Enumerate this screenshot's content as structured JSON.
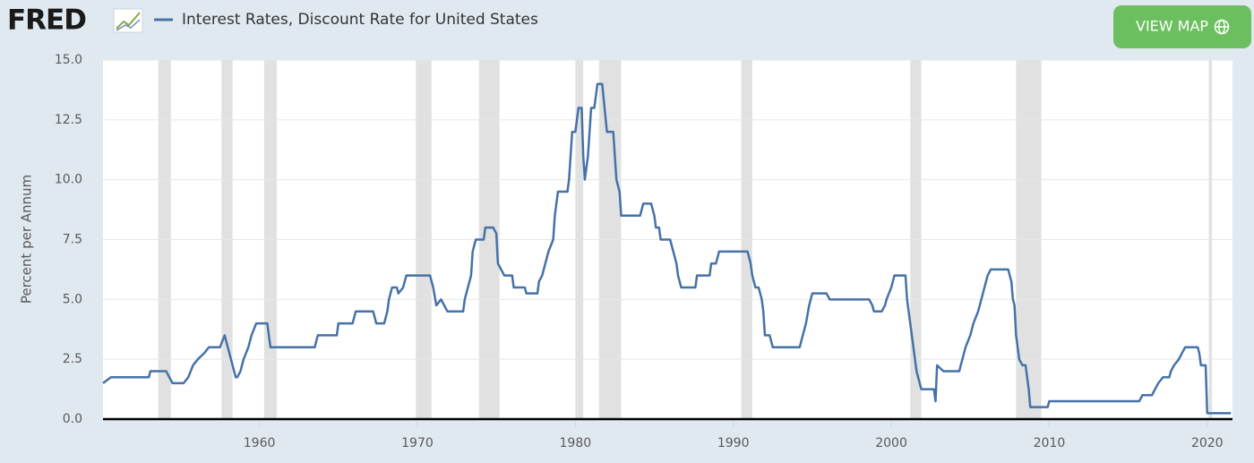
{
  "logo": "FRED",
  "button": "VIEW MAP",
  "chart_data": {
    "type": "line",
    "y_label": "Percent per Annum",
    "xlim": [
      1950.1,
      2021.6
    ],
    "ylim": [
      0,
      15
    ],
    "xticks": [
      1960,
      1970,
      1980,
      1990,
      2000,
      2010,
      2020
    ],
    "yticks": [
      {
        "value": 0,
        "label": "0.0"
      },
      {
        "value": 2.5,
        "label": "2.5"
      },
      {
        "value": 5,
        "label": "5.0"
      },
      {
        "value": 7.5,
        "label": "7.5"
      },
      {
        "value": 10,
        "label": "10.0"
      },
      {
        "value": 12.5,
        "label": "12.5"
      },
      {
        "value": 15,
        "label": "15.0"
      }
    ],
    "grid": true,
    "recessions": [
      [
        1953.6,
        1954.4
      ],
      [
        1957.6,
        1958.3
      ],
      [
        1960.3,
        1961.1
      ],
      [
        1969.9,
        1970.9
      ],
      [
        1973.9,
        1975.2
      ],
      [
        1980.0,
        1980.5
      ],
      [
        1981.5,
        1982.9
      ],
      [
        1990.5,
        1991.2
      ],
      [
        2001.2,
        2001.9
      ],
      [
        2007.9,
        2009.5
      ],
      [
        2020.1,
        2020.3
      ]
    ],
    "recession_color": "#e1e1e1",
    "x": [
      1950.1,
      1950.6,
      1953.0,
      1953.1,
      1954.1,
      1954.5,
      1955.2,
      1955.5,
      1955.8,
      1956.1,
      1956.5,
      1956.8,
      1957.5,
      1957.8,
      1958.0,
      1958.1,
      1958.5,
      1958.6,
      1958.8,
      1959.0,
      1959.3,
      1959.5,
      1959.8,
      1960.5,
      1960.6,
      1960.7,
      1963.5,
      1963.7,
      1964.9,
      1965.0,
      1965.9,
      1966.1,
      1967.2,
      1967.4,
      1967.9,
      1968.1,
      1968.2,
      1968.4,
      1968.7,
      1968.8,
      1969.1,
      1969.3,
      1970.8,
      1971.0,
      1971.2,
      1971.5,
      1971.9,
      1972.9,
      1973.0,
      1973.2,
      1973.4,
      1973.5,
      1973.7,
      1974.2,
      1974.3,
      1974.8,
      1975.0,
      1975.1,
      1975.3,
      1975.5,
      1976.0,
      1976.1,
      1976.8,
      1976.9,
      1977.6,
      1977.7,
      1977.9,
      1978.1,
      1978.3,
      1978.6,
      1978.7,
      1978.9,
      1979.5,
      1979.6,
      1979.7,
      1979.8,
      1980.0,
      1980.2,
      1980.4,
      1980.5,
      1980.6,
      1980.8,
      1980.9,
      1981.0,
      1981.2,
      1981.4,
      1981.7,
      1982.0,
      1982.4,
      1982.5,
      1982.6,
      1982.8,
      1982.9,
      1984.1,
      1984.3,
      1984.8,
      1985.0,
      1985.1,
      1985.3,
      1985.4,
      1986.0,
      1986.2,
      1986.4,
      1986.5,
      1986.7,
      1987.6,
      1987.7,
      1988.5,
      1988.6,
      1988.9,
      1989.1,
      1990.9,
      1991.1,
      1991.2,
      1991.4,
      1991.6,
      1991.8,
      1991.9,
      1992.0,
      1992.3,
      1992.5,
      1994.2,
      1994.4,
      1994.6,
      1994.8,
      1995.0,
      1995.9,
      1996.1,
      1998.6,
      1998.8,
      1998.9,
      1999.4,
      1999.6,
      1999.7,
      2000.0,
      2000.2,
      2000.9,
      2001.0,
      2001.2,
      2001.3,
      2001.6,
      2001.8,
      2001.9,
      2002.7,
      2002.8,
      2002.9,
      2003.3,
      2004.3,
      2004.5,
      2004.7,
      2005.0,
      2005.2,
      2005.5,
      2005.7,
      2005.9,
      2006.1,
      2006.3,
      2007.4,
      2007.6,
      2007.7,
      2007.8,
      2007.9,
      2008.1,
      2008.3,
      2008.5,
      2008.7,
      2008.8,
      2009.9,
      2010.0,
      2015.7,
      2015.9,
      2016.5,
      2016.7,
      2016.9,
      2017.2,
      2017.6,
      2017.7,
      2017.9,
      2018.2,
      2018.4,
      2018.6,
      2019.4,
      2019.5,
      2019.6,
      2019.9,
      2020.0,
      2021.5
    ],
    "series": [
      {
        "name": "Interest Rates, Discount Rate for United States",
        "color": "#4572a7",
        "values": [
          1.5,
          1.75,
          1.75,
          2.0,
          2.0,
          1.5,
          1.5,
          1.75,
          2.25,
          2.5,
          2.75,
          3.0,
          3.0,
          3.5,
          3.0,
          2.75,
          1.75,
          1.75,
          2.0,
          2.5,
          3.0,
          3.5,
          4.0,
          4.0,
          3.5,
          3.0,
          3.0,
          3.5,
          3.5,
          4.0,
          4.0,
          4.5,
          4.5,
          4.0,
          4.0,
          4.5,
          5.0,
          5.5,
          5.5,
          5.25,
          5.5,
          6.0,
          6.0,
          5.5,
          4.75,
          5.0,
          4.5,
          4.5,
          5.0,
          5.5,
          6.0,
          7.0,
          7.5,
          7.5,
          8.0,
          8.0,
          7.75,
          6.5,
          6.25,
          6.0,
          6.0,
          5.5,
          5.5,
          5.25,
          5.25,
          5.75,
          6.0,
          6.5,
          7.0,
          7.5,
          8.5,
          9.5,
          9.5,
          10.0,
          11.0,
          12.0,
          12.0,
          13.0,
          13.0,
          11.0,
          10.0,
          11.0,
          12.0,
          13.0,
          13.0,
          14.0,
          14.0,
          12.0,
          12.0,
          11.0,
          10.0,
          9.5,
          8.5,
          8.5,
          9.0,
          9.0,
          8.5,
          8.0,
          8.0,
          7.5,
          7.5,
          7.0,
          6.5,
          6.0,
          5.5,
          5.5,
          6.0,
          6.0,
          6.5,
          6.5,
          7.0,
          7.0,
          6.5,
          6.0,
          5.5,
          5.5,
          5.0,
          4.5,
          3.5,
          3.5,
          3.0,
          3.0,
          3.5,
          4.0,
          4.75,
          5.25,
          5.25,
          5.0,
          5.0,
          4.75,
          4.5,
          4.5,
          4.75,
          5.0,
          5.5,
          6.0,
          6.0,
          5.0,
          4.0,
          3.5,
          2.0,
          1.5,
          1.25,
          1.25,
          0.75,
          2.25,
          2.0,
          2.0,
          2.5,
          3.0,
          3.5,
          4.0,
          4.5,
          5.0,
          5.5,
          6.0,
          6.25,
          6.25,
          5.75,
          5.0,
          4.75,
          3.5,
          2.5,
          2.25,
          2.25,
          1.25,
          0.5,
          0.5,
          0.75,
          0.75,
          1.0,
          1.0,
          1.25,
          1.5,
          1.75,
          1.75,
          2.0,
          2.25,
          2.5,
          2.75,
          3.0,
          3.0,
          2.75,
          2.25,
          2.25,
          0.25,
          0.25
        ]
      }
    ]
  }
}
